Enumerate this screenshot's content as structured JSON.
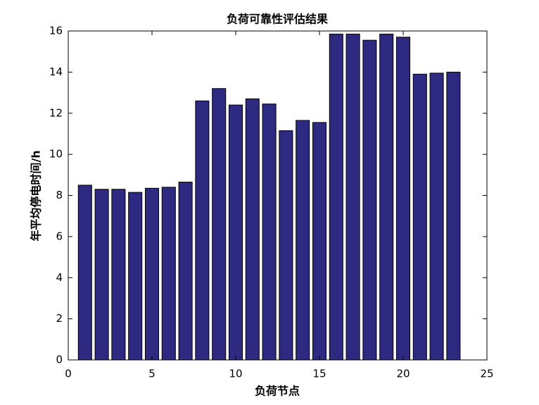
{
  "chart_data": {
    "type": "bar",
    "title": "负荷可靠性评估结果",
    "xlabel": "负荷节点",
    "ylabel": "年平均停电时间/h",
    "x": [
      1,
      2,
      3,
      4,
      5,
      6,
      7,
      8,
      9,
      10,
      11,
      12,
      13,
      14,
      15,
      16,
      17,
      18,
      19,
      20,
      21,
      22,
      23
    ],
    "values": [
      8.5,
      8.3,
      8.3,
      8.15,
      8.35,
      8.4,
      8.65,
      12.6,
      13.2,
      12.4,
      12.7,
      12.45,
      11.15,
      11.65,
      11.55,
      15.85,
      15.85,
      15.55,
      15.85,
      15.7,
      13.9,
      13.95,
      14.0
    ],
    "color": "#2e2a82",
    "xlim": [
      0,
      25
    ],
    "xticks": [
      0,
      5,
      10,
      15,
      20,
      25
    ],
    "ylim": [
      0,
      16
    ],
    "yticks": [
      0,
      2,
      4,
      6,
      8,
      10,
      12,
      14,
      16
    ]
  }
}
